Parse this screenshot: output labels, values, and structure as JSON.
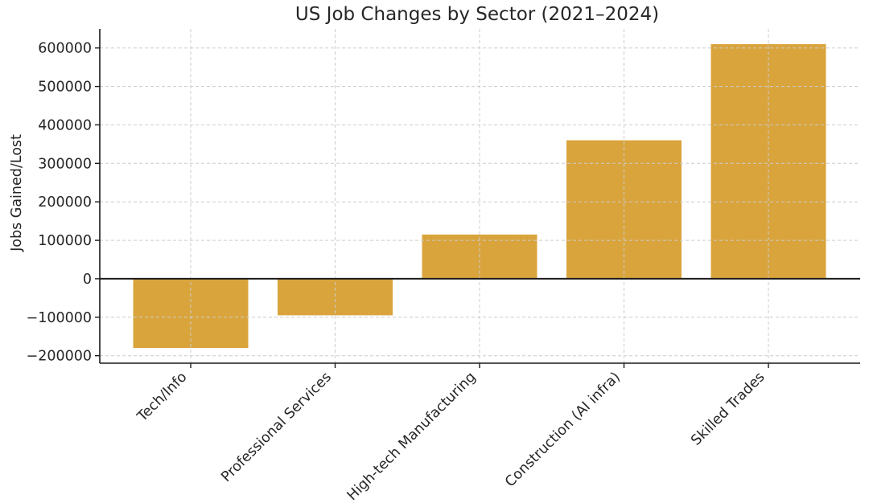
{
  "chart_data": {
    "type": "bar",
    "title": "US Job Changes by Sector (2021–2024)",
    "ylabel": "Jobs Gained/Lost",
    "xlabel": "",
    "categories": [
      "Tech/Info",
      "Professional Services",
      "High-tech Manufacturing",
      "Construction (AI infra)",
      "Skilled Trades"
    ],
    "values": [
      -180000,
      -95000,
      115000,
      360000,
      610000
    ],
    "yticks": [
      600000,
      500000,
      400000,
      300000,
      200000,
      100000,
      0,
      -100000,
      -200000
    ],
    "ytick_labels": [
      "600000",
      "500000",
      "400000",
      "300000",
      "200000",
      "100000",
      "0",
      "−100000",
      "−200000"
    ],
    "ylim": [
      -219500,
      649500
    ],
    "grid": true,
    "grid_style": "dashed",
    "legend": null,
    "zero_line": true,
    "colors": {
      "bar": "#d9a43c",
      "grid": "#cccccc",
      "axis": "#1a1a1a",
      "text": "#262626",
      "background": "#ffffff"
    }
  }
}
